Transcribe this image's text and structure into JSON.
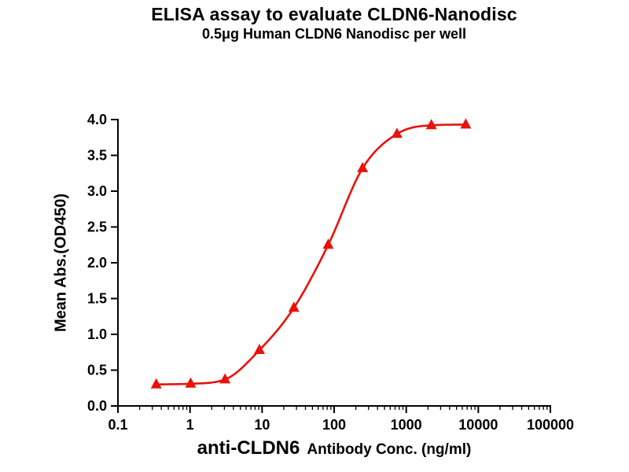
{
  "chart_data": {
    "type": "scatter",
    "title": "ELISA assay to evaluate CLDN6-Nanodisc",
    "subtitle": "0.5μg Human CLDN6 Nanodisc per well",
    "xlabel_main": "anti-CLDN6",
    "xlabel_rest": "Antibody Conc. (ng/ml)",
    "ylabel": "Mean Abs.(OD450)",
    "x_scale": "log10",
    "xlim": [
      0.1,
      100000
    ],
    "ylim": [
      0.0,
      4.0
    ],
    "x_tick_labels": [
      "0.1",
      "1",
      "10",
      "100",
      "1000",
      "10000",
      "100000"
    ],
    "y_tick_labels": [
      "0.0",
      "0.5",
      "1.0",
      "1.5",
      "2.0",
      "2.5",
      "3.0",
      "3.5",
      "4.0"
    ],
    "grid": false,
    "legend": "none",
    "marker": "filled-triangle-up",
    "curve": "sigmoid-fit-through-points",
    "color": "#e8120b",
    "axis_color": "#000000",
    "series": [
      {
        "x": [
          0.34,
          1.02,
          3.06,
          9.19,
          27.6,
          82.7,
          248,
          744,
          2233,
          6700
        ],
        "y": [
          0.3,
          0.31,
          0.37,
          0.78,
          1.37,
          2.25,
          3.32,
          3.8,
          3.92,
          3.93
        ]
      }
    ]
  }
}
